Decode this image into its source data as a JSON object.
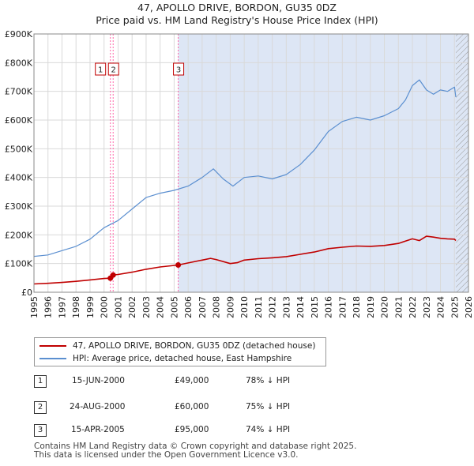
{
  "title_line1": "47, APOLLO DRIVE, BORDON, GU35 0DZ",
  "title_line2": "Price paid vs. HM Land Registry's House Price Index (HPI)",
  "legend": {
    "property_label": "47, APOLLO DRIVE, BORDON, GU35 0DZ (detached house)",
    "hpi_label": "HPI: Average price, detached house, East Hampshire"
  },
  "colors": {
    "property": "#c00000",
    "hpi": "#5b8fd0",
    "event_line": "#ff66aa",
    "shade": "#dde6f5",
    "hatch": "#888888"
  },
  "sales": [
    {
      "num": "1",
      "date": "15-JUN-2000",
      "price": "£49,000",
      "hpi": "78% ↓ HPI"
    },
    {
      "num": "2",
      "date": "24-AUG-2000",
      "price": "£60,000",
      "hpi": "75% ↓ HPI"
    },
    {
      "num": "3",
      "date": "15-APR-2005",
      "price": "£95,000",
      "hpi": "74% ↓ HPI"
    }
  ],
  "footer": {
    "line1": "Contains HM Land Registry data © Crown copyright and database right 2025.",
    "line2": "This data is licensed under the Open Government Licence v3.0."
  },
  "chart_data": {
    "type": "line",
    "title": "47, APOLLO DRIVE, BORDON, GU35 0DZ — Price paid vs. HM Land Registry's House Price Index (HPI)",
    "xlabel": "",
    "ylabel": "",
    "xlim": [
      1995,
      2026
    ],
    "ylim": [
      0,
      900000
    ],
    "x_ticks": [
      1995,
      1996,
      1997,
      1998,
      1999,
      2000,
      2001,
      2002,
      2003,
      2004,
      2005,
      2006,
      2007,
      2008,
      2009,
      2010,
      2011,
      2012,
      2013,
      2014,
      2015,
      2016,
      2017,
      2018,
      2019,
      2020,
      2021,
      2022,
      2023,
      2024,
      2025,
      2026
    ],
    "y_ticks": [
      0,
      100000,
      200000,
      300000,
      400000,
      500000,
      600000,
      700000,
      800000,
      900000
    ],
    "y_tick_labels": [
      "£0",
      "£100K",
      "£200K",
      "£300K",
      "£400K",
      "£500K",
      "£600K",
      "£700K",
      "£800K",
      "£900K"
    ],
    "grid": true,
    "shaded_after_sale": 2005.29,
    "hatched_after": 2025.1,
    "series": [
      {
        "name": "47, APOLLO DRIVE, BORDON, GU35 0DZ (detached house)",
        "x": [
          1995,
          1996,
          1997,
          1998,
          1999,
          2000.0,
          2000.45,
          2000.65,
          2001,
          2002,
          2003,
          2004,
          2005.29,
          2006,
          2007,
          2007.6,
          2008,
          2009,
          2009.5,
          2010,
          2011,
          2012,
          2013,
          2014,
          2015,
          2016,
          2017,
          2018,
          2019,
          2020,
          2021,
          2021.5,
          2022,
          2022.5,
          2023,
          2023.5,
          2024,
          2024.5,
          2025,
          2025.1
        ],
        "y": [
          29000,
          31000,
          34000,
          38000,
          43000,
          48000,
          49000,
          60000,
          62000,
          70000,
          80000,
          88000,
          95000,
          102000,
          112000,
          118000,
          114000,
          100000,
          103000,
          112000,
          117000,
          120000,
          124000,
          132000,
          140000,
          152000,
          157000,
          161000,
          160000,
          163000,
          170000,
          178000,
          186000,
          180000,
          195000,
          192000,
          188000,
          186000,
          185000,
          180000
        ]
      },
      {
        "name": "HPI: Average price, detached house, East Hampshire",
        "x": [
          1995,
          1996,
          1997,
          1998,
          1999,
          2000,
          2001,
          2002,
          2003,
          2004,
          2005,
          2006,
          2007,
          2007.8,
          2008.5,
          2009.2,
          2010,
          2011,
          2012,
          2013,
          2014,
          2015,
          2016,
          2017,
          2018,
          2019,
          2020,
          2021,
          2021.5,
          2022,
          2022.5,
          2023,
          2023.5,
          2024,
          2024.5,
          2025,
          2025.1
        ],
        "y": [
          125000,
          130000,
          145000,
          160000,
          185000,
          225000,
          250000,
          290000,
          330000,
          345000,
          355000,
          370000,
          400000,
          430000,
          395000,
          370000,
          400000,
          405000,
          395000,
          410000,
          445000,
          495000,
          560000,
          595000,
          610000,
          600000,
          615000,
          640000,
          670000,
          720000,
          740000,
          705000,
          690000,
          705000,
          700000,
          715000,
          680000
        ]
      }
    ],
    "sale_events": [
      {
        "label": "1",
        "x": 2000.45,
        "price": 49000
      },
      {
        "label": "2",
        "x": 2000.65,
        "price": 60000
      },
      {
        "label": "3",
        "x": 2005.29,
        "price": 95000
      }
    ]
  }
}
